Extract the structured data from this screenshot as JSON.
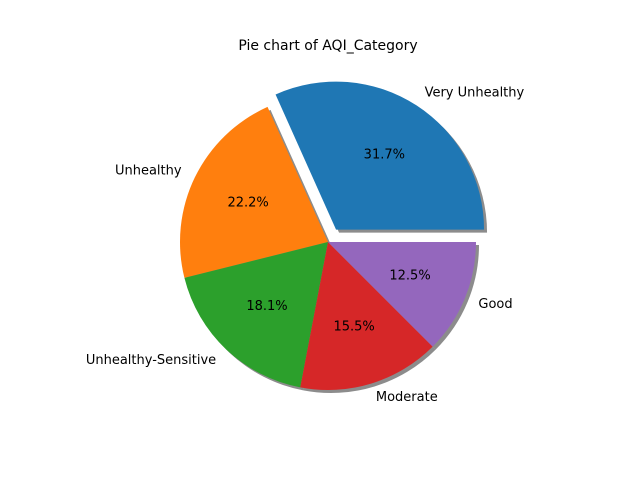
{
  "chart_data": {
    "type": "pie",
    "title": "Pie chart of AQI_Category",
    "categories": [
      "Very Unhealthy",
      "Unhealthy",
      "Unhealthy-Sensitive",
      "Moderate",
      "Good"
    ],
    "values": [
      31.7,
      22.2,
      18.1,
      15.5,
      12.5
    ],
    "percent_labels": [
      "31.7%",
      "22.2%",
      "18.1%",
      "15.5%",
      "12.5%"
    ],
    "colors": [
      "#1f77b4",
      "#ff7f0e",
      "#2ca02c",
      "#d62728",
      "#9467bd"
    ],
    "exploded": [
      true,
      false,
      false,
      false,
      false
    ],
    "shadow": true,
    "start_angle_deg": 0,
    "direction": "counterclockwise"
  }
}
